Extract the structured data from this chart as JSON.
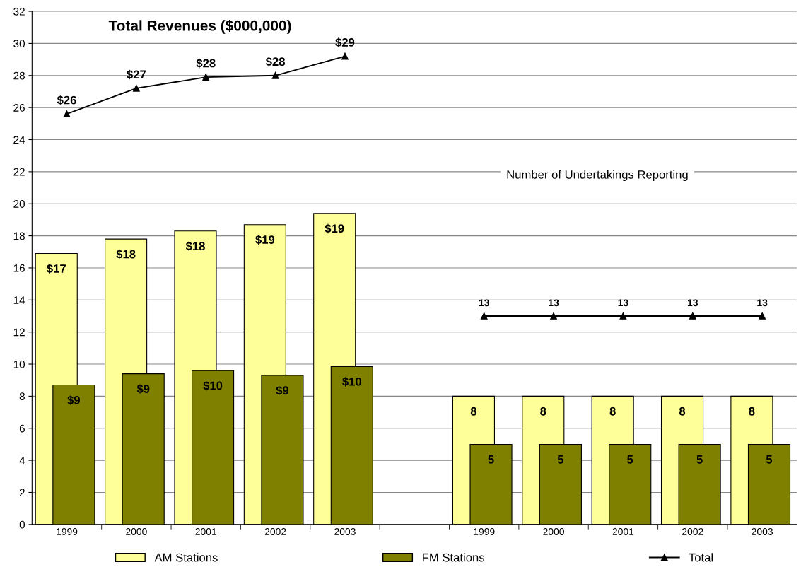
{
  "chart_data": {
    "type": "bar",
    "categories": [
      "1999",
      "2000",
      "2001",
      "2002",
      "2003",
      null,
      "1999",
      "2000",
      "2001",
      "2002",
      "2003"
    ],
    "series": [
      {
        "name": "AM Stations",
        "color": "#ffff99",
        "values": [
          16.9,
          17.8,
          18.3,
          18.7,
          19.4,
          null,
          8,
          8,
          8,
          8,
          8
        ],
        "value_labels": [
          "$17",
          "$18",
          "$18",
          "$19",
          "$19",
          null,
          "8",
          "8",
          "8",
          "8",
          "8"
        ]
      },
      {
        "name": "FM Stations",
        "color": "#808000",
        "values": [
          8.7,
          9.4,
          9.6,
          9.3,
          9.85,
          null,
          5,
          5,
          5,
          5,
          5
        ],
        "value_labels": [
          "$9",
          "$9",
          "$10",
          "$9",
          "$10",
          null,
          "5",
          "5",
          "5",
          "5",
          "5"
        ]
      },
      {
        "name": "Total",
        "type": "line",
        "color": "#000000",
        "marker": "triangle",
        "values": [
          25.6,
          27.2,
          27.9,
          28.0,
          29.2,
          null,
          13,
          13,
          13,
          13,
          13
        ],
        "value_labels": [
          "$26",
          "$27",
          "$28",
          "$28",
          "$29",
          null,
          "13",
          "13",
          "13",
          "13",
          "13"
        ]
      }
    ],
    "annotations": [
      "Total Revenues ($000,000)",
      "Number of Undertakings Reporting"
    ],
    "ylim": [
      0,
      32
    ],
    "yticks": [
      0,
      2,
      4,
      6,
      8,
      10,
      12,
      14,
      16,
      18,
      20,
      22,
      24,
      26,
      28,
      30,
      32
    ],
    "grid": "y",
    "legend": "bottom"
  }
}
